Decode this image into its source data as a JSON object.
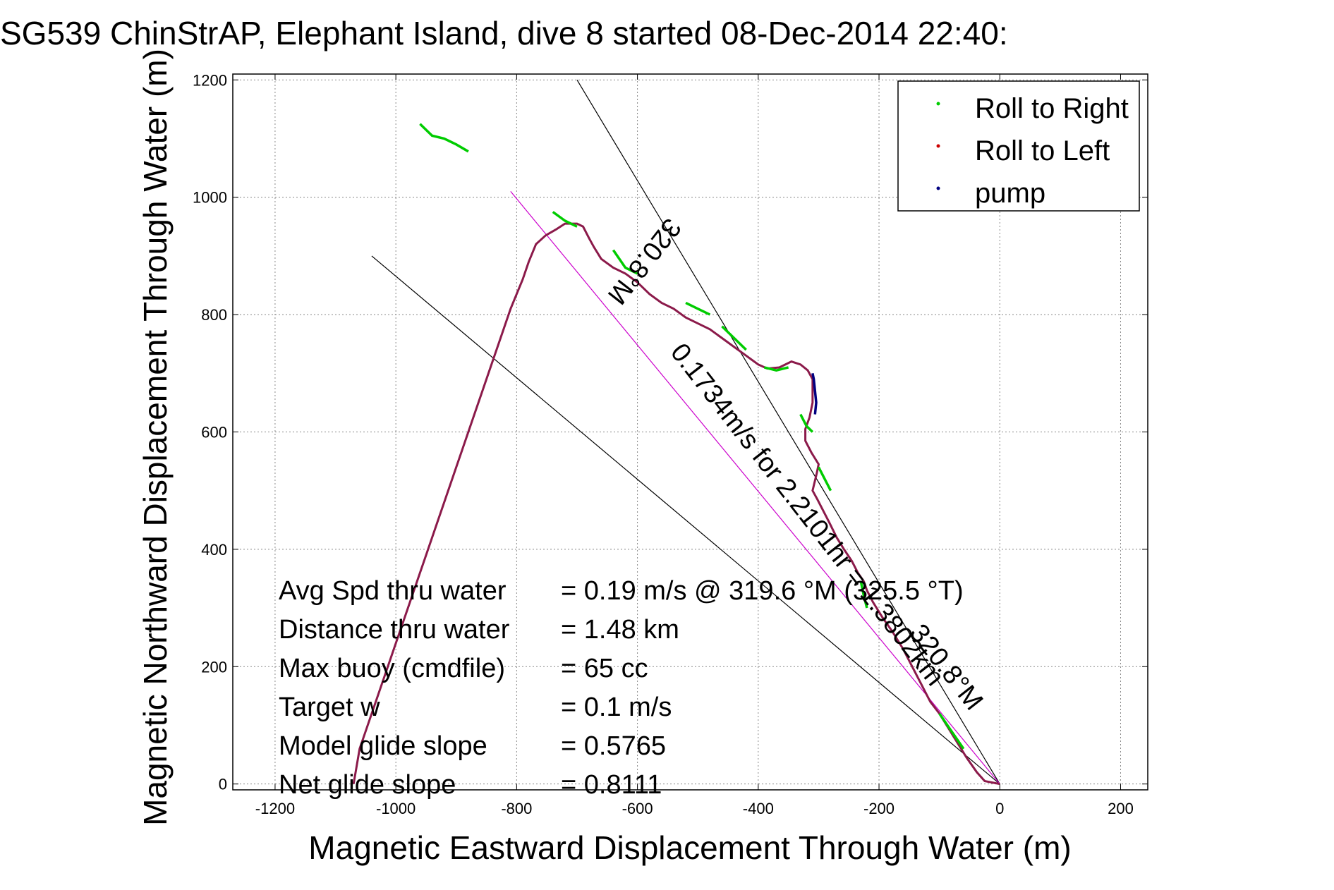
{
  "chart_data": {
    "type": "line",
    "title": "SG539 ChinStrAP, Elephant Island, dive 8 started 08-Dec-2014 22:40:",
    "xlabel": "Magnetic Eastward Displacement Through Water (m)",
    "ylabel": "Magnetic Northward Displacement Through Water (m)",
    "xlim": [
      -1270,
      245
    ],
    "ylim": [
      -10,
      1210
    ],
    "xticks": [
      -1200,
      -1000,
      -800,
      -600,
      -400,
      -200,
      0,
      200
    ],
    "yticks": [
      0,
      200,
      400,
      600,
      800,
      1000,
      1200
    ],
    "grid": true,
    "legend_position": "top-right",
    "legend": [
      {
        "label": "Roll to Right",
        "color": "#00cc00"
      },
      {
        "label": "Roll to Left",
        "color": "#cc0000"
      },
      {
        "label": "pump",
        "color": "#000080"
      }
    ],
    "track_color": "#8b1a4a",
    "track": [
      [
        0,
        0
      ],
      [
        -10,
        2
      ],
      [
        -25,
        5
      ],
      [
        -38,
        20
      ],
      [
        -55,
        45
      ],
      [
        -70,
        70
      ],
      [
        -85,
        95
      ],
      [
        -100,
        120
      ],
      [
        -115,
        140
      ],
      [
        -130,
        170
      ],
      [
        -145,
        200
      ],
      [
        -160,
        230
      ],
      [
        -178,
        260
      ],
      [
        -195,
        285
      ],
      [
        -210,
        310
      ],
      [
        -220,
        330
      ],
      [
        -225,
        345
      ],
      [
        -235,
        360
      ],
      [
        -245,
        380
      ],
      [
        -258,
        400
      ],
      [
        -270,
        420
      ],
      [
        -282,
        445
      ],
      [
        -292,
        465
      ],
      [
        -302,
        485
      ],
      [
        -310,
        500
      ],
      [
        -303,
        530
      ],
      [
        -300,
        545
      ],
      [
        -312,
        565
      ],
      [
        -322,
        585
      ],
      [
        -322,
        605
      ],
      [
        -315,
        625
      ],
      [
        -310,
        650
      ],
      [
        -310,
        670
      ],
      [
        -310,
        690
      ],
      [
        -318,
        705
      ],
      [
        -330,
        715
      ],
      [
        -345,
        720
      ],
      [
        -365,
        710
      ],
      [
        -385,
        708
      ],
      [
        -400,
        715
      ],
      [
        -420,
        730
      ],
      [
        -440,
        745
      ],
      [
        -460,
        760
      ],
      [
        -480,
        775
      ],
      [
        -500,
        785
      ],
      [
        -520,
        795
      ],
      [
        -540,
        810
      ],
      [
        -560,
        820
      ],
      [
        -580,
        835
      ],
      [
        -600,
        855
      ],
      [
        -620,
        870
      ],
      [
        -640,
        880
      ],
      [
        -660,
        895
      ],
      [
        -672,
        915
      ],
      [
        -680,
        930
      ],
      [
        -690,
        950
      ],
      [
        -700,
        955
      ],
      [
        -720,
        955
      ],
      [
        -735,
        945
      ],
      [
        -752,
        935
      ],
      [
        -768,
        920
      ],
      [
        -780,
        890
      ],
      [
        -790,
        860
      ],
      [
        -800,
        835
      ],
      [
        -810,
        810
      ],
      [
        -820,
        780
      ],
      [
        -830,
        750
      ],
      [
        -840,
        720
      ],
      [
        -850,
        690
      ],
      [
        -860,
        660
      ],
      [
        -870,
        630
      ],
      [
        -880,
        600
      ],
      [
        -890,
        570
      ],
      [
        -900,
        540
      ],
      [
        -910,
        510
      ],
      [
        -920,
        480
      ],
      [
        -930,
        450
      ],
      [
        -940,
        420
      ],
      [
        -950,
        390
      ],
      [
        -960,
        360
      ],
      [
        -970,
        330
      ],
      [
        -980,
        300
      ],
      [
        -990,
        270
      ],
      [
        -1000,
        240
      ],
      [
        -1010,
        210
      ],
      [
        -1020,
        180
      ],
      [
        -1030,
        150
      ],
      [
        -1040,
        120
      ],
      [
        -1050,
        90
      ],
      [
        -1060,
        60
      ],
      [
        -1065,
        30
      ],
      [
        -1070,
        0
      ]
    ],
    "green_segments": [
      [
        [
          -960,
          1125
        ],
        [
          -940,
          1105
        ],
        [
          -920,
          1100
        ],
        [
          -900,
          1090
        ],
        [
          -880,
          1078
        ]
      ],
      [
        [
          -740,
          975
        ],
        [
          -720,
          960
        ],
        [
          -700,
          950
        ]
      ],
      [
        [
          -640,
          910
        ],
        [
          -620,
          880
        ],
        [
          -600,
          870
        ]
      ],
      [
        [
          -520,
          820
        ],
        [
          -500,
          810
        ],
        [
          -480,
          800
        ]
      ],
      [
        [
          -460,
          780
        ],
        [
          -440,
          760
        ],
        [
          -420,
          740
        ]
      ],
      [
        [
          -390,
          710
        ],
        [
          -370,
          705
        ],
        [
          -350,
          710
        ]
      ],
      [
        [
          -330,
          630
        ],
        [
          -320,
          610
        ],
        [
          -310,
          600
        ]
      ],
      [
        [
          -300,
          540
        ],
        [
          -290,
          520
        ],
        [
          -280,
          500
        ]
      ],
      [
        [
          -230,
          345
        ],
        [
          -225,
          320
        ],
        [
          -220,
          300
        ]
      ],
      [
        [
          -100,
          120
        ],
        [
          -80,
          90
        ],
        [
          -60,
          60
        ]
      ]
    ],
    "pump_segments": [
      [
        [
          -310,
          700
        ],
        [
          -308,
          690
        ],
        [
          -306,
          670
        ],
        [
          -304,
          650
        ],
        [
          -306,
          630
        ]
      ]
    ],
    "reference_lines": [
      {
        "from": [
          0,
          0
        ],
        "to": [
          -700,
          1200
        ],
        "color": "#000000"
      },
      {
        "from": [
          0,
          0
        ],
        "to": [
          -1040,
          900
        ],
        "color": "#000000"
      },
      {
        "from": [
          0,
          0
        ],
        "to": [
          -810,
          1010
        ],
        "color": "#cc00cc"
      }
    ],
    "annotations": [
      {
        "text": "320.8°M",
        "at": [
          -600,
          900
        ],
        "angle": 128
      },
      {
        "text": "0.1734m/s for 2.2101hr = 1.3802km",
        "at": [
          -330,
          450
        ],
        "angle": 52
      },
      {
        "text": "320.8°M",
        "at": [
          -100,
          190
        ],
        "angle": 52
      }
    ],
    "stats": [
      {
        "label": "Avg Spd thru water",
        "value": "=  0.19 m/s @ 319.6 °M (325.5 °T)"
      },
      {
        "label": "Distance thru water",
        "value": "=  1.48 km"
      },
      {
        "label": "Max buoy (cmdfile)",
        "value": "= 65 cc"
      },
      {
        "label": "Target w",
        "value": "= 0.1 m/s"
      },
      {
        "label": "Model glide slope",
        "value": "= 0.5765"
      },
      {
        "label": "Net glide slope",
        "value": "= 0.8111"
      }
    ]
  }
}
